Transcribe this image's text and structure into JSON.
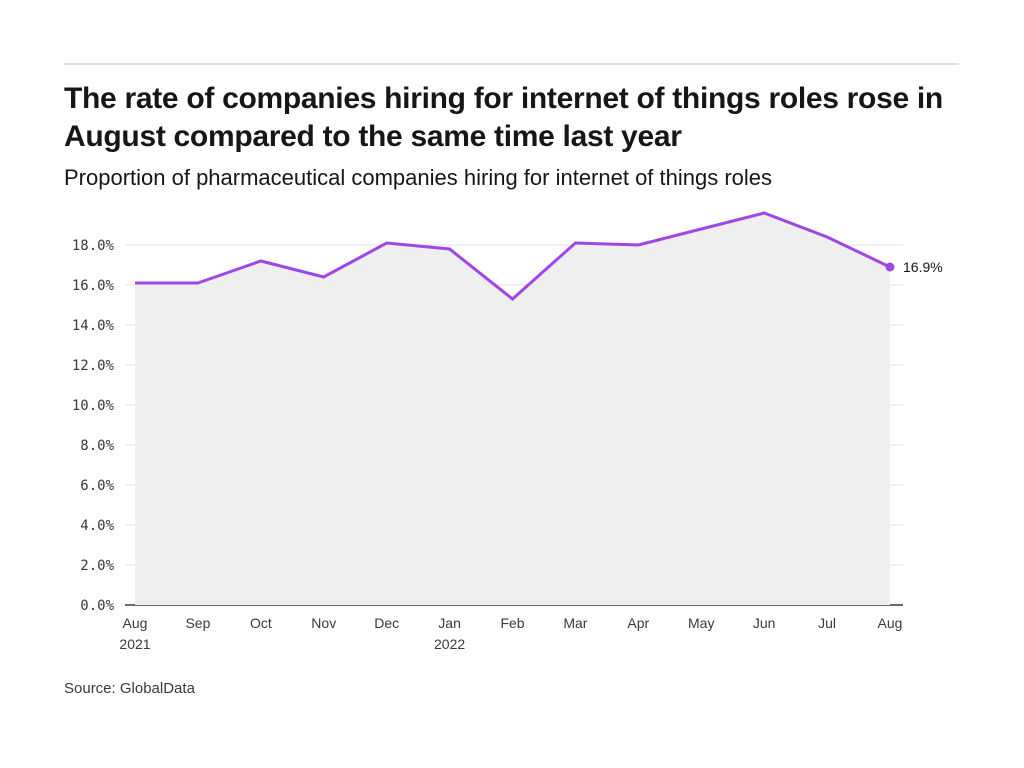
{
  "header": {
    "title": "The rate of companies hiring for internet of things roles rose in August compared to the same time last year",
    "subtitle": "Proportion of pharmaceutical companies hiring for internet of things roles"
  },
  "footer": {
    "source": "Source: GlobalData"
  },
  "colors": {
    "line": "#a046e6",
    "area": "#efefef",
    "grid": "#e0e0e0",
    "axis": "#393939"
  },
  "chart_data": {
    "type": "area",
    "title": "The rate of companies hiring for internet of things roles rose in August compared to the same time last year",
    "subtitle": "Proportion of pharmaceutical companies hiring for internet of things roles",
    "xlabel": "",
    "ylabel": "",
    "categories": [
      "Aug 2021",
      "Sep",
      "Oct",
      "Nov",
      "Dec",
      "Jan 2022",
      "Feb",
      "Mar",
      "Apr",
      "May",
      "Jun",
      "Jul",
      "Aug"
    ],
    "x_tick_labels": [
      [
        "Aug",
        "2021"
      ],
      [
        "Sep"
      ],
      [
        "Oct"
      ],
      [
        "Nov"
      ],
      [
        "Dec"
      ],
      [
        "Jan",
        "2022"
      ],
      [
        "Feb"
      ],
      [
        "Mar"
      ],
      [
        "Apr"
      ],
      [
        "May"
      ],
      [
        "Jun"
      ],
      [
        "Jul"
      ],
      [
        "Aug"
      ]
    ],
    "series": [
      {
        "name": "Proportion of pharmaceutical companies hiring for internet of things roles",
        "values": [
          16.1,
          16.1,
          17.2,
          16.4,
          18.1,
          17.8,
          15.3,
          18.1,
          18.0,
          18.8,
          19.6,
          18.4,
          16.9
        ]
      }
    ],
    "ylim": [
      0,
      18
    ],
    "y_ticks": [
      0,
      2,
      4,
      6,
      8,
      10,
      12,
      14,
      16,
      18
    ],
    "y_tick_labels": [
      "0.0%",
      "2.0%",
      "4.0%",
      "6.0%",
      "8.0%",
      "10.0%",
      "12.0%",
      "14.0%",
      "16.0%",
      "18.0%"
    ],
    "grid": true,
    "legend": "none",
    "annotations": [
      {
        "point": "Aug",
        "label": "16.9%"
      }
    ]
  }
}
